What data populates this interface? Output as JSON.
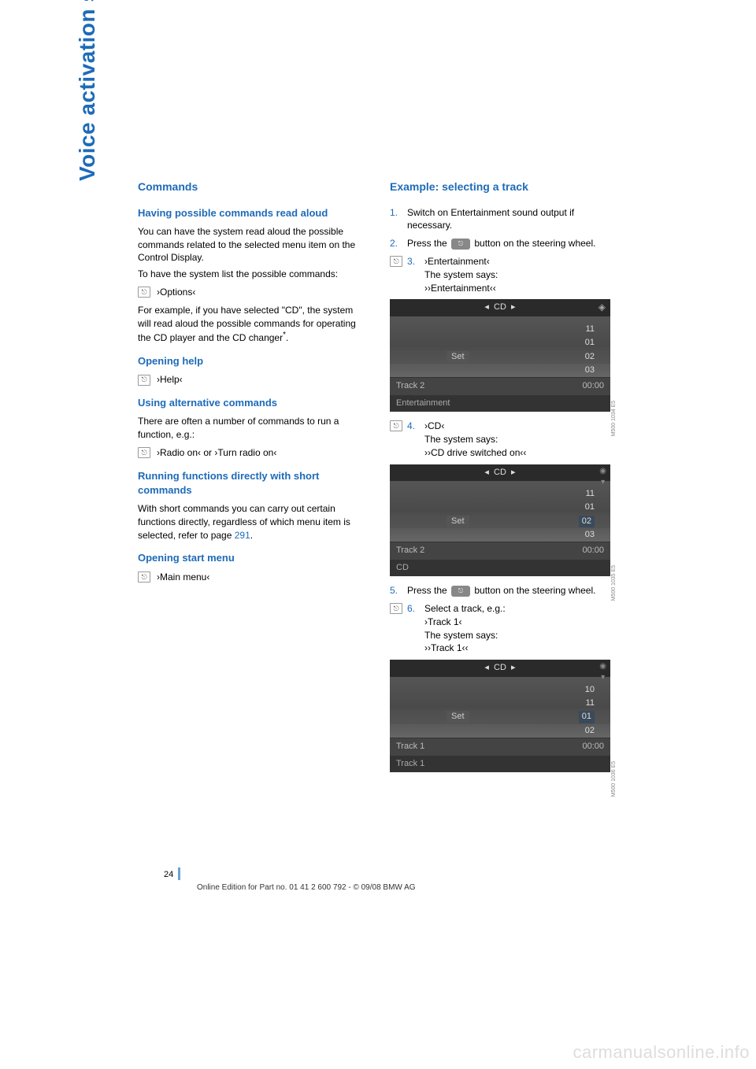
{
  "side_title": "Voice activation system",
  "left": {
    "commands_h": "Commands",
    "readaloud_h": "Having possible commands read aloud",
    "readaloud_p1": "You can have the system read aloud the possible commands related to the selected menu item on the Control Display.",
    "readaloud_p2": "To have the system list the possible commands:",
    "readaloud_cmd": "›Options‹",
    "readaloud_p3": "For example, if you have selected \"CD\", the system will read aloud the possible commands for operating the CD player and the CD changer",
    "readaloud_star": "*",
    "readaloud_dot": ".",
    "help_h": "Opening help",
    "help_cmd": "›Help‹",
    "alt_h": "Using alternative commands",
    "alt_p": "There are often a number of commands to run a function, e.g.:",
    "alt_cmd1": "›Radio on‹",
    "alt_or": "or",
    "alt_cmd2": "›Turn radio on‹",
    "short_h": "Running functions directly with short commands",
    "short_p1": "With short commands you can carry out certain functions directly, regardless of which menu item is selected, refer to page ",
    "short_link": "291",
    "short_dot": ".",
    "startmenu_h": "Opening start menu",
    "startmenu_cmd": "›Main menu‹"
  },
  "right": {
    "example_h": "Example: selecting a track",
    "step1_n": "1.",
    "step1_t": "Switch on Entertainment sound output if necessary.",
    "step2_n": "2.",
    "step2_t1": "Press the ",
    "step2_t2": " button on the steering wheel.",
    "step3_n": "3.",
    "step3_cmd": "›Entertainment‹",
    "step3_says": "The system says:",
    "step3_resp": "››Entertainment‹‹",
    "step4_n": "4.",
    "step4_cmd": "›CD‹",
    "step4_says": "The system says:",
    "step4_resp": "››CD drive switched on‹‹",
    "step5_n": "5.",
    "step5_t1": "Press the ",
    "step5_t2": " button on the steering wheel.",
    "step6_n": "6.",
    "step6_t": "Select a track, e.g.:",
    "step6_cmd": "›Track 1‹",
    "step6_says": "The system says:",
    "step6_resp": "››Track 1‹‹"
  },
  "screen1": {
    "header": "CD",
    "rows": [
      "11",
      "01",
      "02",
      "03"
    ],
    "set_label": "Set",
    "track": "Track 2",
    "time": "00:00",
    "footer": "Entertainment",
    "code": "M500 1034 E5"
  },
  "screen2": {
    "header": "CD",
    "rows": [
      "11",
      "01",
      "02",
      "03"
    ],
    "set_label": "Set",
    "track": "Track 2",
    "time": "00:00",
    "footer": "CD",
    "code": "M500 1035 E5"
  },
  "screen3": {
    "header": "CD",
    "rows": [
      "10",
      "11",
      "01",
      "02"
    ],
    "set_label": "Set",
    "track": "Track 1",
    "time": "00:00",
    "footer": "Track 1",
    "code": "M500 1036 E5"
  },
  "page_number": "24",
  "footer_line": "Online Edition for Part no. 01 41 2 600 792 - © 09/08 BMW AG",
  "watermark": "carmanualsonline.info",
  "colors": {
    "accent": "#1e6bb8",
    "text": "#000000",
    "side_mark": "#6aa0d8",
    "watermark": "#dddddd"
  }
}
